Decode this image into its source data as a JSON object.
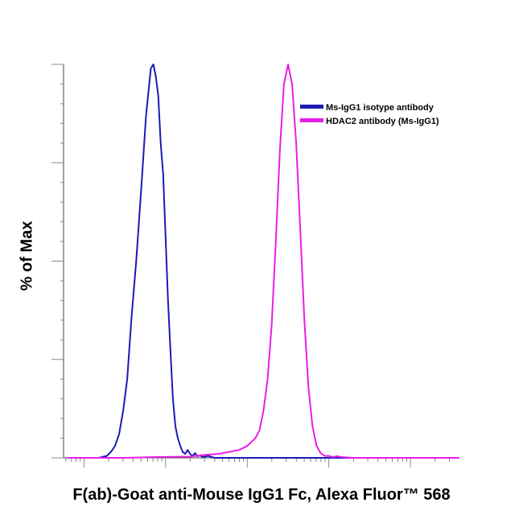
{
  "chart_data": {
    "type": "line",
    "xlabel": "F(ab)-Goat anti-Mouse IgG1 Fc, Alexa Fluor™ 568",
    "ylabel": "% of Max",
    "ylim": [
      0,
      100
    ],
    "x_scale": "log",
    "xlim": [
      -0.25,
      4.6
    ],
    "grid": false,
    "legend_position": "top-right",
    "series": [
      {
        "name": "Ms-IgG1 isotype antibody",
        "color": "#1b1bb5",
        "x": [
          0.18,
          0.28,
          0.33,
          0.38,
          0.43,
          0.48,
          0.53,
          0.58,
          0.64,
          0.7,
          0.76,
          0.82,
          0.85,
          0.88,
          0.91,
          0.94,
          0.97,
          1.0,
          1.03,
          1.06,
          1.09,
          1.12,
          1.15,
          1.18,
          1.21,
          1.24,
          1.27,
          1.3,
          1.33,
          1.36,
          1.39,
          1.42,
          1.46,
          1.52,
          1.6,
          1.8,
          2.2,
          3.0,
          4.6
        ],
        "y": [
          0,
          0.5,
          1.5,
          3,
          6,
          12,
          20,
          35,
          50,
          68,
          87,
          99,
          100,
          97,
          92,
          80,
          72,
          56,
          40,
          27,
          15,
          8,
          5,
          3,
          1.5,
          1,
          2,
          1,
          0.5,
          1.2,
          0.4,
          0.6,
          0.2,
          0.5,
          0,
          0,
          0,
          0,
          0
        ]
      },
      {
        "name": "HDAC2 antibody (Ms-IgG1)",
        "color": "#e81ee8",
        "x": [
          -0.2,
          0.5,
          0.9,
          1.3,
          1.5,
          1.65,
          1.78,
          1.9,
          2.0,
          2.1,
          2.15,
          2.2,
          2.25,
          2.3,
          2.35,
          2.4,
          2.45,
          2.5,
          2.55,
          2.6,
          2.65,
          2.7,
          2.75,
          2.8,
          2.85,
          2.9,
          2.95,
          3.0,
          3.05,
          3.1,
          3.15,
          3.22,
          3.3,
          3.5,
          4.6
        ],
        "y": [
          0,
          0,
          0.2,
          0.3,
          0.8,
          1,
          1.5,
          2,
          3,
          5,
          7,
          12,
          20,
          34,
          55,
          78,
          95,
          100,
          95,
          80,
          58,
          35,
          18,
          8,
          3,
          1.2,
          0.5,
          0.5,
          0.2,
          0.4,
          0.2,
          0.1,
          0,
          0,
          0
        ]
      }
    ]
  }
}
